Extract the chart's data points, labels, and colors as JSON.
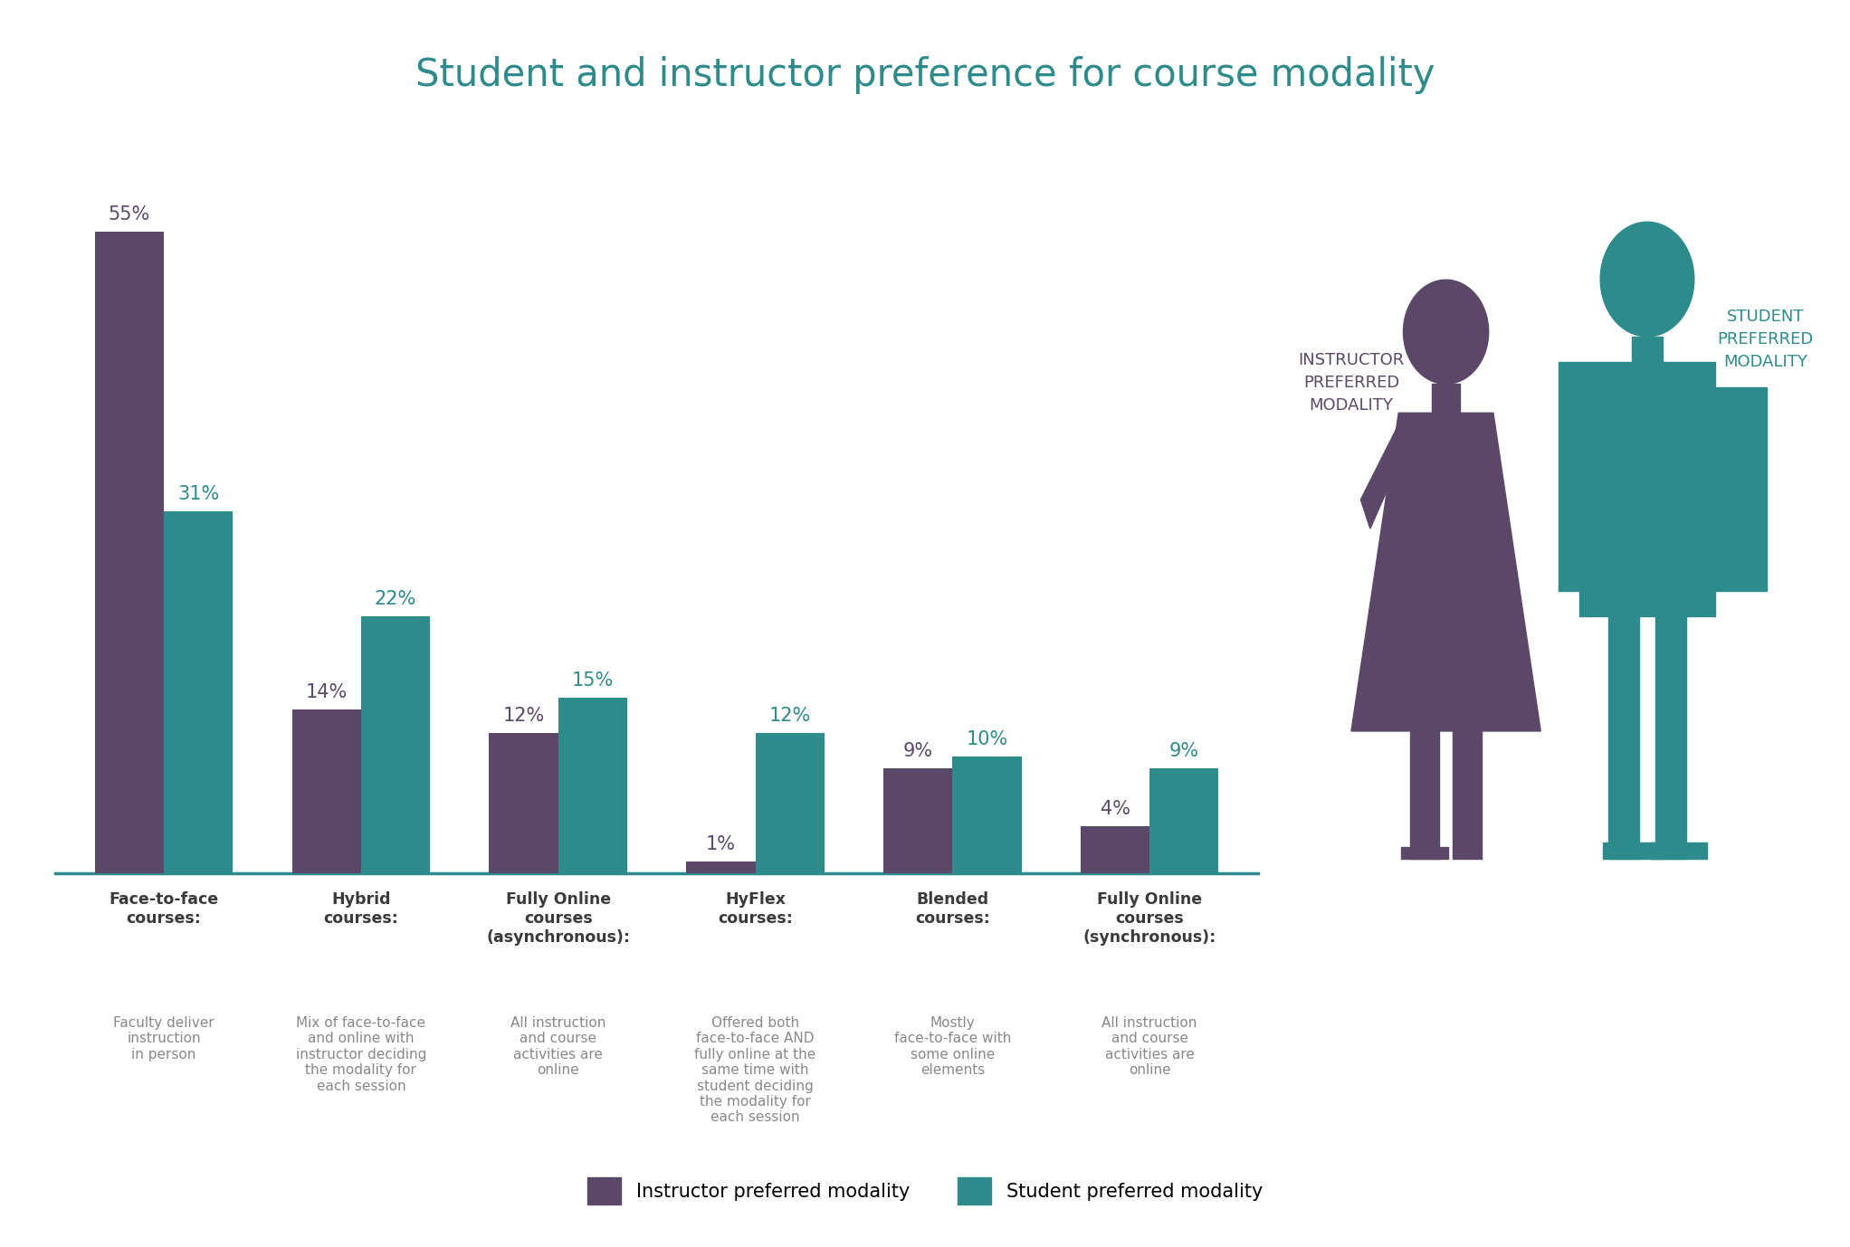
{
  "title": "Student and instructor preference for course modality",
  "title_color": "#2D8B8B",
  "title_fontsize": 30,
  "categories": [
    "Face-to-face\ncourses:",
    "Hybrid\ncourses:",
    "Fully Online\ncourses\n(asynchronous):",
    "HyFlex\ncourses:",
    "Blended\ncourses:",
    "Fully Online\ncourses\n(synchronous):"
  ],
  "category_descriptions": [
    "Faculty deliver\ninstruction\nin person",
    "Mix of face-to-face\nand online with\ninstructor deciding\nthe modality for\neach session",
    "All instruction\nand course\nactivities are\nonline",
    "Offered both\nface-to-face AND\nfully online at the\nsame time with\nstudent deciding\nthe modality for\neach session",
    "Mostly\nface-to-face with\nsome online\nelements",
    "All instruction\nand course\nactivities are\nonline"
  ],
  "instructor_values": [
    55,
    14,
    12,
    1,
    9,
    4
  ],
  "student_values": [
    31,
    22,
    15,
    12,
    10,
    9
  ],
  "instructor_color": "#5B4869",
  "student_color": "#2D8B8B",
  "bar_width": 0.35,
  "ylim": [
    0,
    62
  ],
  "background_color": "#FFFFFF",
  "instructor_label": "Instructor preferred modality",
  "student_label": "Student preferred modality",
  "instructor_text_color": "#5B4869",
  "student_text_color": "#2D8B8B",
  "axis_line_color": "#2D8B8B",
  "category_title_color": "#3A3A3A",
  "category_desc_color": "#888888",
  "instructor_modality_label": "INSTRUCTOR\nPREFERRED\nMODALITY",
  "student_modality_label": "STUDENT\nPREFERRED\nMODALITY"
}
